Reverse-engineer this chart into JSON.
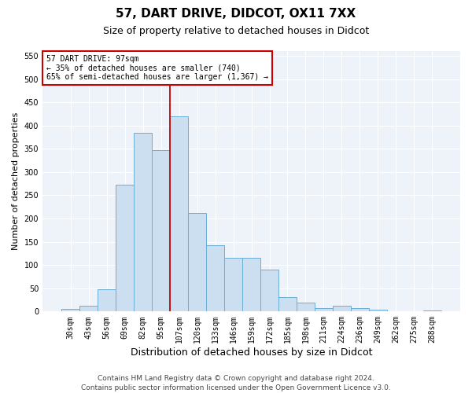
{
  "title1": "57, DART DRIVE, DIDCOT, OX11 7XX",
  "title2": "Size of property relative to detached houses in Didcot",
  "xlabel": "Distribution of detached houses by size in Didcot",
  "ylabel": "Number of detached properties",
  "categories": [
    "30sqm",
    "43sqm",
    "56sqm",
    "69sqm",
    "82sqm",
    "95sqm",
    "107sqm",
    "120sqm",
    "133sqm",
    "146sqm",
    "159sqm",
    "172sqm",
    "185sqm",
    "198sqm",
    "211sqm",
    "224sqm",
    "236sqm",
    "249sqm",
    "262sqm",
    "275sqm",
    "288sqm"
  ],
  "values": [
    5,
    12,
    48,
    273,
    385,
    347,
    420,
    212,
    143,
    116,
    116,
    90,
    31,
    20,
    8,
    12,
    7,
    4,
    1,
    0,
    3
  ],
  "bar_color": "#ccdff0",
  "bar_edge_color": "#6aaed6",
  "bar_edge_width": 0.7,
  "vline_x": 5.5,
  "vline_color": "#cc0000",
  "annotation_line1": "57 DART DRIVE: 97sqm",
  "annotation_line2": "← 35% of detached houses are smaller (740)",
  "annotation_line3": "65% of semi-detached houses are larger (1,367) →",
  "annotation_box_color": "#cc0000",
  "ylim": [
    0,
    560
  ],
  "yticks": [
    0,
    50,
    100,
    150,
    200,
    250,
    300,
    350,
    400,
    450,
    500,
    550
  ],
  "bg_color": "#eef2f9",
  "grid_color": "#ffffff",
  "footer1": "Contains HM Land Registry data © Crown copyright and database right 2024.",
  "footer2": "Contains public sector information licensed under the Open Government Licence v3.0.",
  "title1_fontsize": 11,
  "title2_fontsize": 9,
  "xlabel_fontsize": 9,
  "ylabel_fontsize": 8,
  "tick_fontsize": 7,
  "footer_fontsize": 6.5
}
